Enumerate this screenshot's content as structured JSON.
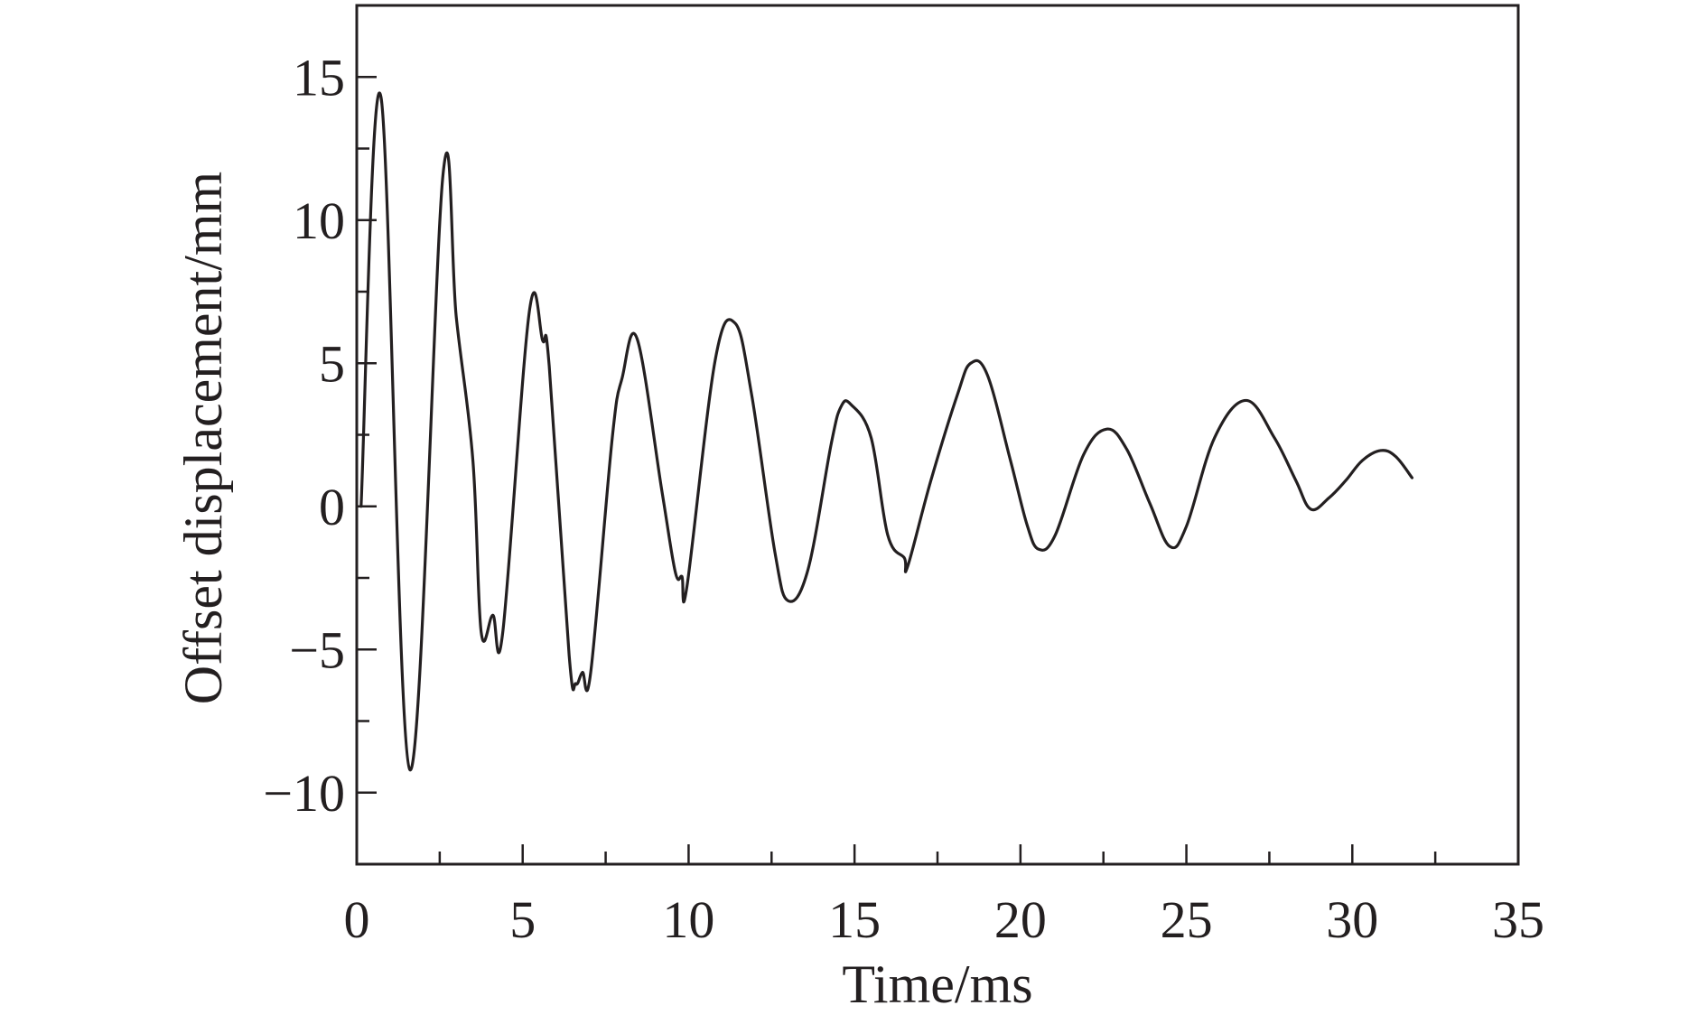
{
  "chart_data": {
    "type": "line",
    "title": "",
    "xlabel": "Time/ms",
    "ylabel": "Offset displacement/mm",
    "xlim": [
      0,
      35
    ],
    "ylim": [
      -12.5,
      17.5
    ],
    "xticks": [
      0,
      5,
      10,
      15,
      20,
      25,
      30,
      35
    ],
    "xtick_labels": [
      "0",
      "5",
      "10",
      "15",
      "20",
      "25",
      "30",
      "35"
    ],
    "yticks": [
      -10,
      -5,
      0,
      5,
      10,
      15
    ],
    "ytick_labels": [
      "−10",
      "−5",
      "0",
      "5",
      "10",
      "15"
    ],
    "grid": false,
    "line_color": "#231f20",
    "series": [
      {
        "name": "Offset displacement",
        "x": [
          0.13,
          0.73,
          1.6,
          2.6,
          3.0,
          3.5,
          3.75,
          4.1,
          4.4,
          5.2,
          5.6,
          5.8,
          6.4,
          6.6,
          6.8,
          7.05,
          7.7,
          8.0,
          8.45,
          9.2,
          9.6,
          9.8,
          9.95,
          10.8,
          11.4,
          11.9,
          12.6,
          13.0,
          13.6,
          14.3,
          14.6,
          14.9,
          15.5,
          16.0,
          16.5,
          16.6,
          17.3,
          18.1,
          18.5,
          19.0,
          19.7,
          20.2,
          20.55,
          21.05,
          21.9,
          22.6,
          23.2,
          23.9,
          24.5,
          25.0,
          25.85,
          26.8,
          27.65,
          28.3,
          28.75,
          29.3,
          29.8,
          30.3,
          30.85,
          31.3,
          31.8
        ],
        "y": [
          0,
          14.3,
          -9.2,
          11.6,
          6.6,
          1.6,
          -4.4,
          -3.8,
          -4.4,
          6.8,
          5.8,
          4.9,
          -5.2,
          -6.2,
          -5.8,
          -5.8,
          2.4,
          4.5,
          5.85,
          0.5,
          -2.3,
          -2.45,
          -2.8,
          5.1,
          6.4,
          3.9,
          -1.6,
          -3.3,
          -2.2,
          2.2,
          3.5,
          3.55,
          2.4,
          -1.0,
          -1.8,
          -2.1,
          0.9,
          3.9,
          5.0,
          4.6,
          1.6,
          -0.65,
          -1.5,
          -1.0,
          1.8,
          2.7,
          2.0,
          0.1,
          -1.4,
          -0.7,
          2.4,
          3.7,
          2.4,
          0.9,
          -0.1,
          0.3,
          0.9,
          1.6,
          1.95,
          1.75,
          1.0
        ]
      }
    ]
  }
}
